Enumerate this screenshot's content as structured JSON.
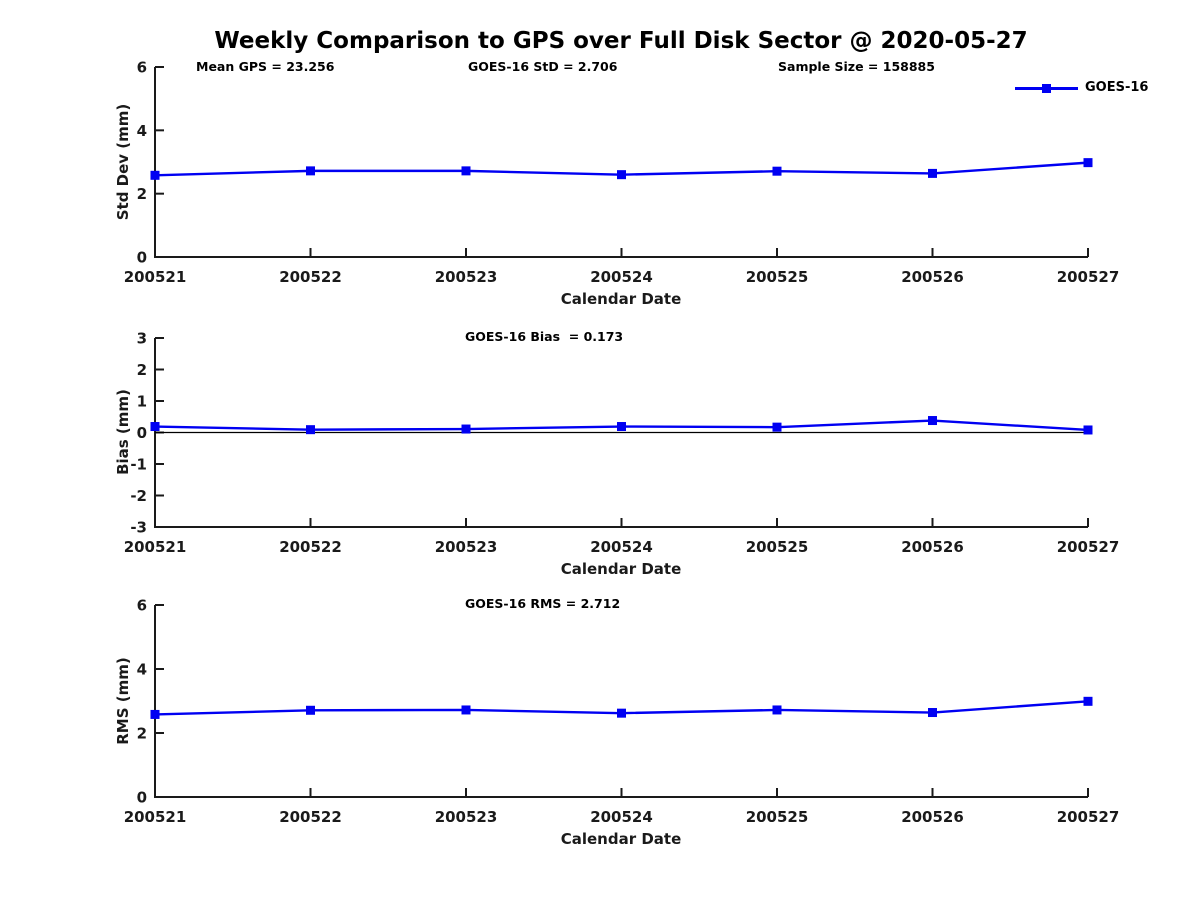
{
  "chart_data": {
    "type": "line",
    "title": "Weekly Comparison to GPS over Full Disk Sector @ 2020-05-27",
    "xlabel": "Calendar Date",
    "categories": [
      "200521",
      "200522",
      "200523",
      "200524",
      "200525",
      "200526",
      "200527"
    ],
    "legend": {
      "label": "GOES-16",
      "position": "top-right"
    },
    "line_color": "#0000F2",
    "axis_color": "#1a1a1a",
    "grid": false,
    "subplots": [
      {
        "name": "std-dev",
        "ylabel": "Std Dev (mm)",
        "ylim": [
          0,
          6
        ],
        "yticks": [
          0,
          2,
          4,
          6
        ],
        "values": [
          2.58,
          2.72,
          2.72,
          2.6,
          2.71,
          2.64,
          2.98
        ],
        "annotations": [
          "Mean GPS = 23.256",
          "GOES-16 StD = 2.706",
          "Sample Size = 158885"
        ]
      },
      {
        "name": "bias",
        "ylabel": "Bias (mm)",
        "ylim": [
          -3,
          3
        ],
        "yticks": [
          3,
          2,
          1,
          0,
          -1,
          -2,
          -3
        ],
        "values": [
          0.19,
          0.09,
          0.11,
          0.19,
          0.17,
          0.38,
          0.08
        ],
        "annotations": [
          "GOES-16 Bias  = 0.173"
        ],
        "zero_line": true
      },
      {
        "name": "rms",
        "ylabel": "RMS (mm)",
        "ylim": [
          0,
          6
        ],
        "yticks": [
          0,
          2,
          4,
          6
        ],
        "values": [
          2.58,
          2.71,
          2.72,
          2.62,
          2.72,
          2.64,
          2.99
        ],
        "annotations": [
          "GOES-16 RMS = 2.712"
        ]
      }
    ]
  }
}
